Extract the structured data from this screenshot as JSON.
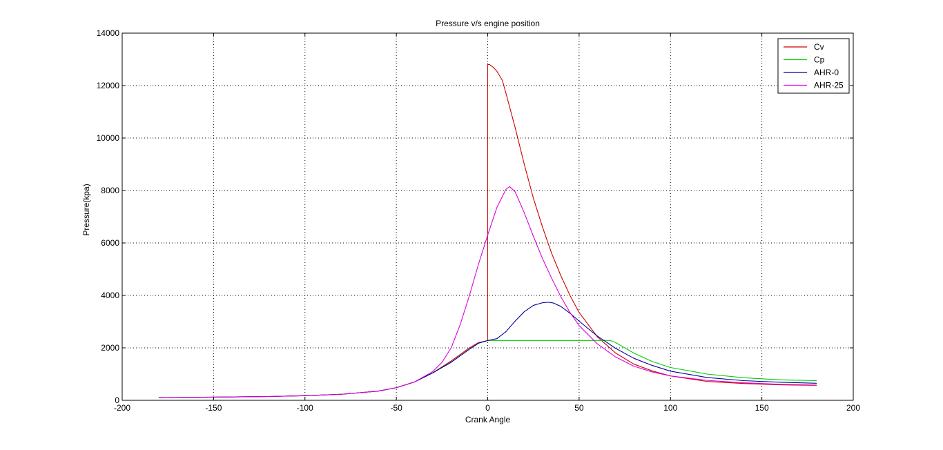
{
  "chart_data": {
    "type": "line",
    "title": "Pressure v/s engine position",
    "xlabel": "Crank Angle",
    "ylabel": "Pressure(kpa)",
    "xlim": [
      -200,
      200
    ],
    "ylim": [
      0,
      14000
    ],
    "xticks": [
      -200,
      -150,
      -100,
      -50,
      0,
      50,
      100,
      150,
      200
    ],
    "yticks": [
      0,
      2000,
      4000,
      6000,
      8000,
      10000,
      12000,
      14000
    ],
    "grid": true,
    "legend_position": "top-right",
    "series": [
      {
        "name": "Cv",
        "color": "#cc0000",
        "x": [
          -180,
          -150,
          -120,
          -100,
          -80,
          -60,
          -50,
          -40,
          -30,
          -20,
          -10,
          -5,
          0,
          0,
          1,
          3,
          5,
          8,
          10,
          15,
          20,
          25,
          30,
          35,
          40,
          45,
          50,
          60,
          70,
          80,
          90,
          100,
          120,
          140,
          160,
          180
        ],
        "y": [
          100,
          120,
          145,
          175,
          230,
          350,
          480,
          700,
          1050,
          1500,
          2000,
          2200,
          2280,
          12800,
          12800,
          12700,
          12550,
          12200,
          11700,
          10400,
          9000,
          7700,
          6600,
          5600,
          4750,
          4000,
          3350,
          2420,
          1800,
          1380,
          1120,
          930,
          720,
          640,
          590,
          570
        ]
      },
      {
        "name": "Cp",
        "color": "#00cc00",
        "x": [
          -180,
          -150,
          -120,
          -100,
          -80,
          -60,
          -50,
          -40,
          -30,
          -20,
          -10,
          -5,
          0,
          10,
          30,
          50,
          60,
          67,
          70,
          80,
          90,
          100,
          120,
          140,
          160,
          180
        ],
        "y": [
          100,
          120,
          145,
          175,
          230,
          350,
          480,
          700,
          1050,
          1450,
          1950,
          2180,
          2280,
          2280,
          2280,
          2280,
          2280,
          2280,
          2200,
          1800,
          1480,
          1250,
          1000,
          860,
          780,
          750
        ]
      },
      {
        "name": "AHR-0",
        "color": "#000099",
        "x": [
          -180,
          -150,
          -120,
          -100,
          -80,
          -60,
          -50,
          -40,
          -30,
          -20,
          -10,
          -5,
          0,
          5,
          10,
          15,
          20,
          25,
          30,
          33,
          36,
          40,
          45,
          50,
          55,
          60,
          70,
          80,
          90,
          100,
          120,
          140,
          160,
          180
        ],
        "y": [
          100,
          120,
          145,
          175,
          230,
          350,
          480,
          700,
          1050,
          1450,
          1950,
          2180,
          2280,
          2350,
          2620,
          3020,
          3380,
          3620,
          3720,
          3740,
          3710,
          3580,
          3320,
          3020,
          2730,
          2450,
          1980,
          1600,
          1330,
          1110,
          870,
          750,
          690,
          650
        ]
      },
      {
        "name": "AHR-25",
        "color": "#dd00dd",
        "x": [
          -180,
          -150,
          -120,
          -100,
          -80,
          -60,
          -50,
          -40,
          -30,
          -25,
          -20,
          -15,
          -10,
          -5,
          0,
          5,
          10,
          12,
          15,
          20,
          25,
          30,
          35,
          40,
          45,
          50,
          60,
          70,
          80,
          90,
          100,
          120,
          140,
          160,
          180
        ],
        "y": [
          100,
          120,
          145,
          175,
          230,
          350,
          480,
          700,
          1100,
          1450,
          2000,
          2900,
          4000,
          5200,
          6300,
          7350,
          8050,
          8150,
          7950,
          7150,
          6250,
          5400,
          4650,
          3950,
          3350,
          2850,
          2150,
          1650,
          1300,
          1080,
          930,
          760,
          670,
          610,
          580
        ]
      }
    ]
  }
}
